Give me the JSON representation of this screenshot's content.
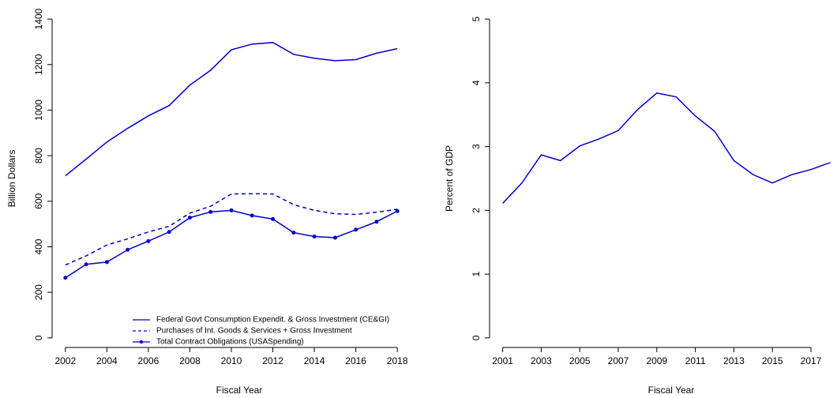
{
  "chart_data": [
    {
      "type": "line",
      "xlabel": "Fiscal Year",
      "ylabel": "Billion Dollars",
      "x": [
        2002,
        2003,
        2004,
        2005,
        2006,
        2007,
        2008,
        2009,
        2010,
        2011,
        2012,
        2013,
        2014,
        2015,
        2016,
        2017,
        2018
      ],
      "xlim": [
        2001.36,
        2018.64
      ],
      "xticks": [
        2002,
        2004,
        2006,
        2008,
        2010,
        2012,
        2014,
        2016,
        2018
      ],
      "ylim": [
        -42,
        1442
      ],
      "yticks": [
        0,
        200,
        400,
        600,
        800,
        1000,
        1200,
        1400
      ],
      "legend": "bottom-right",
      "series": [
        {
          "name": "Federal Govt Consumption Expendit. & Gross Investment (CE&GI)",
          "color": "#0000cd",
          "line_style": "solid",
          "marker": false,
          "values": [
            712,
            785,
            860,
            920,
            975,
            1020,
            1110,
            1175,
            1265,
            1290,
            1297,
            1245,
            1228,
            1217,
            1222,
            1250,
            1270
          ]
        },
        {
          "name": "Purchases of Int. Goods & Services + Gross Investment",
          "color": "#0000cd",
          "line_style": "dashed",
          "marker": false,
          "values": [
            320,
            360,
            408,
            435,
            465,
            490,
            548,
            578,
            632,
            633,
            632,
            585,
            560,
            545,
            542,
            552,
            565
          ]
        },
        {
          "name": "Total Contract Obligations (USASpending)",
          "color": "#0000cd",
          "line_style": "solid",
          "marker": true,
          "values": [
            264,
            323,
            333,
            387,
            425,
            465,
            528,
            553,
            560,
            537,
            522,
            462,
            445,
            440,
            475,
            510,
            557
          ]
        }
      ]
    },
    {
      "type": "line",
      "xlabel": "Fiscal Year",
      "ylabel": "Percent of GDP",
      "x": [
        2001,
        2002,
        2003,
        2004,
        2005,
        2006,
        2007,
        2008,
        2009,
        2010,
        2011,
        2012,
        2013,
        2014,
        2015,
        2016,
        2017,
        2018
      ],
      "xlim": [
        2000.32,
        2018.68
      ],
      "xticks": [
        2001,
        2003,
        2005,
        2007,
        2009,
        2011,
        2013,
        2015,
        2017
      ],
      "ylim": [
        -0.15,
        5.15
      ],
      "yticks": [
        0,
        1,
        2,
        3,
        4,
        5
      ],
      "series": [
        {
          "color": "#0000cd",
          "line_style": "solid",
          "marker": false,
          "values": [
            2.11,
            2.43,
            2.87,
            2.78,
            3.01,
            3.12,
            3.25,
            3.58,
            3.84,
            3.78,
            3.48,
            3.24,
            2.78,
            2.56,
            2.43,
            2.56,
            2.64,
            2.75
          ]
        }
      ]
    }
  ]
}
